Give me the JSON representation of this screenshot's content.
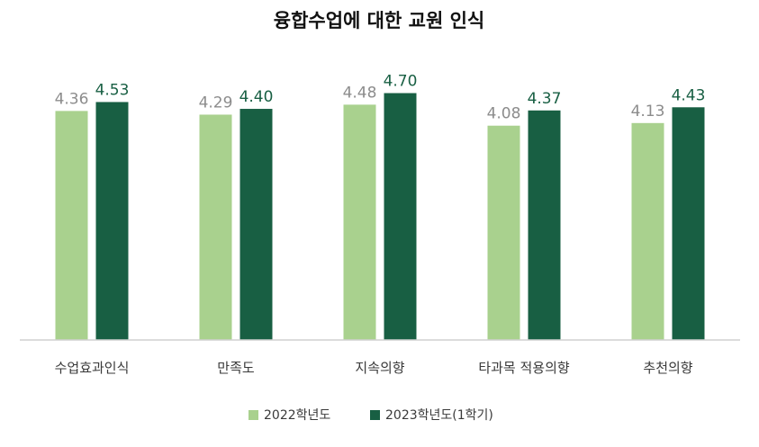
{
  "chart_data": {
    "type": "bar",
    "title": "융합수업에 대한 교원 인식",
    "xlabel": "",
    "ylabel": "",
    "categories": [
      "수업효과인식",
      "만족도",
      "지속의향",
      "타과목 적용의향",
      "추천의향"
    ],
    "series": [
      {
        "name": "2022학년도",
        "values": [
          4.36,
          4.29,
          4.48,
          4.08,
          4.13
        ],
        "labels": [
          "4.36",
          "4.29",
          "4.48",
          "4.08",
          "4.13"
        ],
        "color": "#a9d18e",
        "label_color": "#8c8c8c"
      },
      {
        "name": "2023학년도(1학기)",
        "values": [
          4.53,
          4.4,
          4.7,
          4.37,
          4.43
        ],
        "labels": [
          "4.53",
          "4.40",
          "4.70",
          "4.37",
          "4.43"
        ],
        "color": "#185f43",
        "label_color": "#185f43"
      }
    ],
    "ylim": [
      0,
      5.2
    ],
    "grid": false,
    "legend_position": "bottom-center"
  },
  "colors": {
    "axis": "#d0d0d0",
    "text": "#3a3a3a"
  }
}
